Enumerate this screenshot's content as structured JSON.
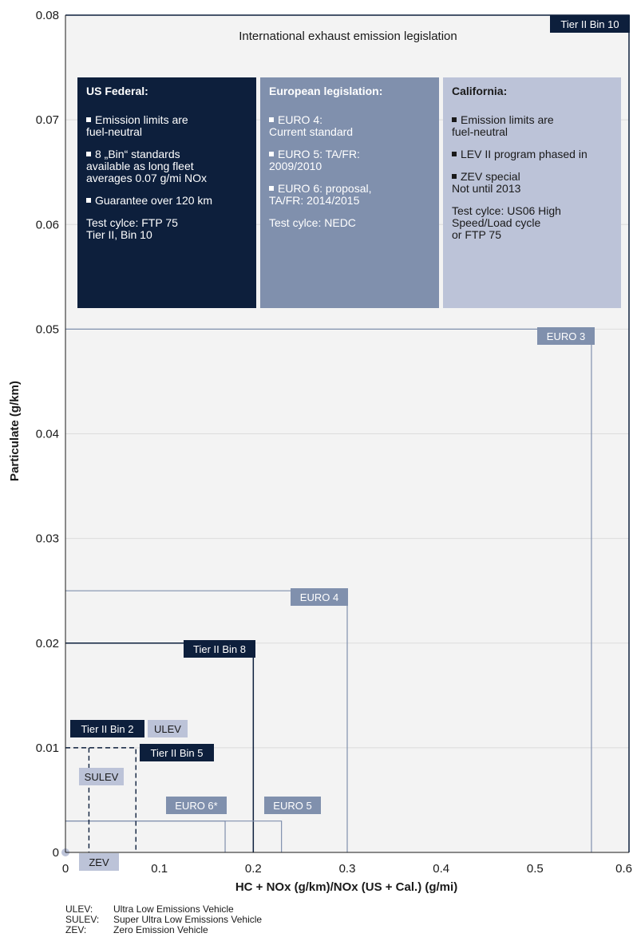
{
  "chart_data": {
    "type": "line",
    "title": "International exhaust emission legislation",
    "xlabel": "HC + NOx (g/km)/NOx (US + Cal.) (g/mi)",
    "ylabel": "Particulate (g/km)",
    "xlim": [
      0,
      0.6
    ],
    "ylim": [
      0,
      0.08
    ],
    "x_ticks": [
      "0",
      "0.1",
      "0.2",
      "0.3",
      "0.4",
      "0.5",
      "0.6"
    ],
    "y_ticks": [
      "0",
      "0.01",
      "0.02",
      "0.03",
      "0.04",
      "0.05",
      "0.06",
      "0.07",
      "0.08"
    ],
    "grid": "horizontal",
    "limits": [
      {
        "name": "Tier II Bin 10",
        "x": 0.6,
        "y": 0.08,
        "group": "us"
      },
      {
        "name": "EURO 3",
        "x": 0.56,
        "y": 0.05,
        "group": "eu"
      },
      {
        "name": "EURO 4",
        "x": 0.3,
        "y": 0.025,
        "group": "eu"
      },
      {
        "name": "Tier II Bin 8",
        "x": 0.2,
        "y": 0.02,
        "group": "us"
      },
      {
        "name": "EURO 5",
        "x": 0.23,
        "y": 0.003,
        "group": "eu"
      },
      {
        "name": "EURO 6*",
        "x": 0.17,
        "y": 0.003,
        "group": "eu"
      },
      {
        "name": "Tier II Bin 5",
        "x": 0.075,
        "y": 0.01,
        "group": "us"
      },
      {
        "name": "Tier II Bin 2",
        "x": 0.025,
        "y": 0.01,
        "group": "us"
      },
      {
        "name": "ULEV",
        "x": 0.075,
        "y": 0.01,
        "group": "ca"
      },
      {
        "name": "SULEV",
        "x": 0.025,
        "y": 0.01,
        "group": "ca"
      },
      {
        "name": "ZEV",
        "x": 0,
        "y": 0,
        "group": "ca"
      }
    ]
  },
  "colors": {
    "us": "#0d1f3c",
    "eu": "#8090ad",
    "ca": "#bcc3d8",
    "grid": "#dcdcdc",
    "plot_bg": "#f3f3f3"
  },
  "panels": {
    "us": {
      "heading": "US Federal:",
      "items": [
        "Emission limits are\nfuel-neutral",
        "8 „Bin“ standards\navailable as long fleet\naverages 0.07 g/mi NOx",
        "Guarantee over 120 km"
      ],
      "test": "Test cylce: FTP 75\nTier II, Bin 10"
    },
    "eu": {
      "heading": "European legislation:",
      "items": [
        "EURO 4:\nCurrent standard",
        "EURO 5: TA/FR:\n2009/2010",
        "EURO 6: proposal,\nTA/FR: 2014/2015"
      ],
      "test": "Test cylce: NEDC"
    },
    "ca": {
      "heading": "California:",
      "items": [
        "Emission limits are\nfuel-neutral",
        "LEV II program phased in",
        "ZEV special\nNot until 2013"
      ],
      "test": "Test cylce: US06 High\nSpeed/Load cycle\nor FTP 75"
    }
  },
  "footnotes": [
    {
      "abbr": "ULEV:",
      "text": "Ultra Low Emissions Vehicle"
    },
    {
      "abbr": "SULEV:",
      "text": "Super Ultra Low Emissions Vehicle"
    },
    {
      "abbr": "ZEV:",
      "text": "Zero Emission Vehicle"
    }
  ]
}
